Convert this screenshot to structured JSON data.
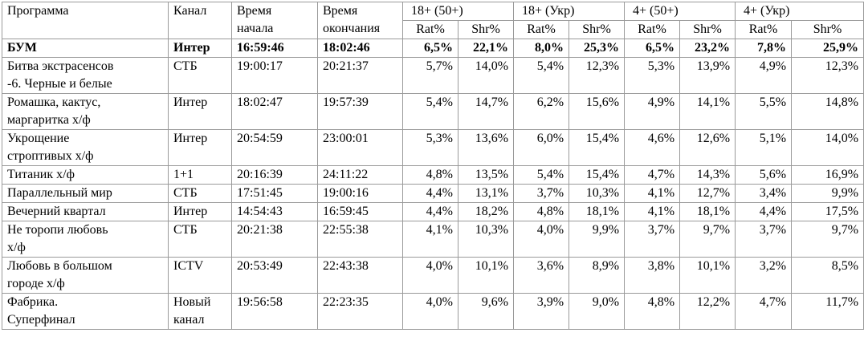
{
  "table": {
    "header": [
      "Программа",
      "Канал",
      "Время\nначала",
      "Время\nокончания"
    ],
    "groups": [
      "18+ (50+)",
      "18+ (Укр)",
      "4+ (50+)",
      "4+ (Укр)"
    ],
    "subheaders": [
      "Rat%",
      "Shr%",
      "Rat%",
      "Shr%",
      "Rat%",
      "Shr%",
      "Rat%",
      "Shr%"
    ],
    "rows": [
      [
        "БУМ",
        "Интер",
        "16:59:46",
        "18:02:46",
        "6,5%",
        "22,1%",
        "8,0%",
        "25,3%",
        "6,5%",
        "23,2%",
        "7,8%",
        "25,9%"
      ],
      [
        "Битва экстрасенсов\n-6. Черные и белые",
        "СТБ",
        "19:00:17",
        "20:21:37",
        "5,7%",
        "14,0%",
        "5,4%",
        "12,3%",
        "5,3%",
        "13,9%",
        "4,9%",
        "12,3%"
      ],
      [
        "Ромашка, кактус,\nмаргаритка х/ф",
        "Интер",
        "18:02:47",
        "19:57:39",
        "5,4%",
        "14,7%",
        "6,2%",
        "15,6%",
        "4,9%",
        "14,1%",
        "5,5%",
        "14,8%"
      ],
      [
        "Укрощение\nстроптивых х/ф",
        "Интер",
        "20:54:59",
        "23:00:01",
        "5,3%",
        "13,6%",
        "6,0%",
        "15,4%",
        "4,6%",
        "12,6%",
        "5,1%",
        "14,0%"
      ],
      [
        "Титаник х/ф",
        "1+1",
        "20:16:39",
        "24:11:22",
        "4,8%",
        "13,5%",
        "5,4%",
        "15,4%",
        "4,7%",
        "14,3%",
        "5,6%",
        "16,9%"
      ],
      [
        "Параллельный мир",
        "СТБ",
        "17:51:45",
        "19:00:16",
        "4,4%",
        "13,1%",
        "3,7%",
        "10,3%",
        "4,1%",
        "12,7%",
        "3,4%",
        "9,9%"
      ],
      [
        "Вечерний квартал",
        "Интер",
        "14:54:43",
        "16:59:45",
        "4,4%",
        "18,2%",
        "4,8%",
        "18,1%",
        "4,1%",
        "18,1%",
        "4,4%",
        "17,5%"
      ],
      [
        "Не торопи любовь\nх/ф",
        "СТБ",
        "20:21:38",
        "22:55:38",
        "4,1%",
        "10,3%",
        "4,0%",
        "9,9%",
        "3,7%",
        "9,7%",
        "3,7%",
        "9,7%"
      ],
      [
        "Любовь в большом\nгороде х/ф",
        "ICTV",
        "20:53:49",
        "22:43:38",
        "4,0%",
        "10,1%",
        "3,6%",
        "8,9%",
        "3,8%",
        "10,1%",
        "3,2%",
        "8,5%"
      ],
      [
        "Фабрика.\nСуперфинал",
        "Новый\nканал",
        "19:56:58",
        "22:23:35",
        "4,0%",
        "9,6%",
        "3,9%",
        "9,0%",
        "4,8%",
        "12,2%",
        "4,7%",
        "11,7%"
      ]
    ]
  }
}
